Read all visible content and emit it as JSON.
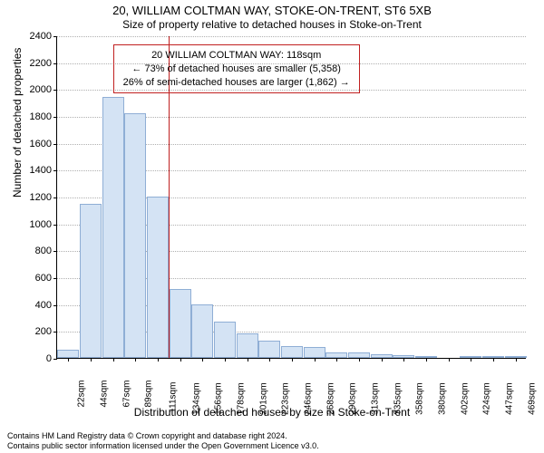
{
  "chart": {
    "type": "histogram",
    "title_main": "20, WILLIAM COLTMAN WAY, STOKE-ON-TRENT, ST6 5XB",
    "title_sub": "Size of property relative to detached houses in Stoke-on-Trent",
    "title_fontsize": 13,
    "subtitle_fontsize": 12,
    "ylabel": "Number of detached properties",
    "xlabel": "Distribution of detached houses by size in Stoke-on-Trent",
    "axis_label_fontsize": 12,
    "tick_fontsize": 11,
    "background_color": "#ffffff",
    "grid_color": "#b0b0b0",
    "bar_fill": "#d4e3f4",
    "bar_border": "#8faed5",
    "ref_line_color": "#c02020",
    "info_box_border": "#c02020",
    "y": {
      "min": 0,
      "max": 2400,
      "step": 200,
      "ticks": [
        0,
        200,
        400,
        600,
        800,
        1000,
        1200,
        1400,
        1600,
        1800,
        2000,
        2200,
        2400
      ]
    },
    "x": {
      "labels": [
        "22sqm",
        "44sqm",
        "67sqm",
        "89sqm",
        "111sqm",
        "134sqm",
        "156sqm",
        "178sqm",
        "201sqm",
        "223sqm",
        "246sqm",
        "268sqm",
        "290sqm",
        "313sqm",
        "335sqm",
        "358sqm",
        "380sqm",
        "402sqm",
        "424sqm",
        "447sqm",
        "469sqm"
      ]
    },
    "bars": [
      60,
      1145,
      1940,
      1820,
      1200,
      510,
      400,
      270,
      180,
      130,
      90,
      80,
      40,
      40,
      30,
      20,
      10,
      0,
      10,
      10,
      10
    ],
    "reference_bar_index": 4,
    "info_box": {
      "lines": [
        "20 WILLIAM COLTMAN WAY: 118sqm",
        "← 73% of detached houses are smaller (5,358)",
        "26% of semi-detached houses are larger (1,862) →"
      ],
      "left_bar_index": 2.5,
      "top_value": 2340
    }
  },
  "footer": {
    "line1": "Contains HM Land Registry data © Crown copyright and database right 2024.",
    "line2": "Contains public sector information licensed under the Open Government Licence v3.0."
  }
}
